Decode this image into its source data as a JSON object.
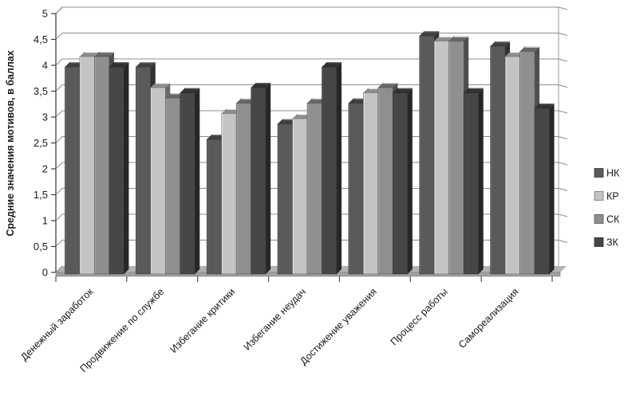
{
  "chart_data": {
    "type": "bar",
    "style": "3d-clustered-column",
    "title": "",
    "xlabel": "",
    "ylabel": "Средние значения мотивов, в баллах",
    "ylim": [
      0,
      5
    ],
    "ytick_step": 0.5,
    "ytick_labels": [
      "0",
      "0,5",
      "1",
      "1,5",
      "2",
      "2,5",
      "3",
      "3,5",
      "4",
      "4,5",
      "5"
    ],
    "grid": true,
    "legend_position": "right",
    "categories": [
      "Денежный заработок",
      "Продвижение по службе",
      "Избегание критики",
      "Избегание неудач",
      "Достижение уважения",
      "Процесс работы",
      "Самореализация"
    ],
    "series": [
      {
        "name": "НК",
        "color": "#5a5a5a",
        "values": [
          4.0,
          4.0,
          2.6,
          2.9,
          3.3,
          4.6,
          4.4
        ]
      },
      {
        "name": "КР",
        "color": "#c4c4c4",
        "values": [
          4.2,
          3.6,
          3.1,
          3.0,
          3.5,
          4.5,
          4.2
        ]
      },
      {
        "name": "СК",
        "color": "#8f8f8f",
        "values": [
          4.2,
          3.4,
          3.3,
          3.3,
          3.6,
          4.5,
          4.3
        ]
      },
      {
        "name": "ЗК",
        "color": "#464646",
        "values": [
          4.0,
          3.5,
          3.6,
          4.0,
          3.5,
          3.5,
          3.2
        ]
      }
    ]
  },
  "colors": {
    "background": "#ffffff",
    "axis": "#3f3f3f",
    "gridline": "#8c8c8c",
    "wall_edge": "#9a9a9a",
    "floor_top": "#b3b3b3",
    "floor_front": "#a0a0a0",
    "floor_outline": "#777777",
    "text": "#1a1a1a"
  }
}
